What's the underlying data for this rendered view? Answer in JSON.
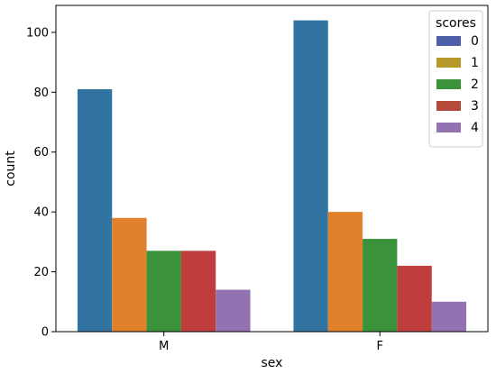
{
  "chart_data": {
    "type": "bar",
    "xlabel": "sex",
    "ylabel": "count",
    "categories": [
      "M",
      "F"
    ],
    "ylim": [
      0,
      109
    ],
    "yticks": [
      0,
      20,
      40,
      60,
      80,
      100
    ],
    "grid": false,
    "legend": {
      "title": "scores",
      "placement": "top-right"
    },
    "series": [
      {
        "name": "0",
        "color": "#3274a1",
        "legend_color": "#4c5fa8",
        "values": [
          81,
          104
        ]
      },
      {
        "name": "1",
        "color": "#e1812c",
        "legend_color": "#b59a2a",
        "values": [
          38,
          40
        ]
      },
      {
        "name": "2",
        "color": "#3a923a",
        "legend_color": "#3a923a",
        "values": [
          27,
          31
        ]
      },
      {
        "name": "3",
        "color": "#c03d3e",
        "legend_color": "#b5493a",
        "values": [
          27,
          22
        ]
      },
      {
        "name": "4",
        "color": "#9372b2",
        "legend_color": "#9372b2",
        "values": [
          14,
          10
        ]
      }
    ]
  }
}
